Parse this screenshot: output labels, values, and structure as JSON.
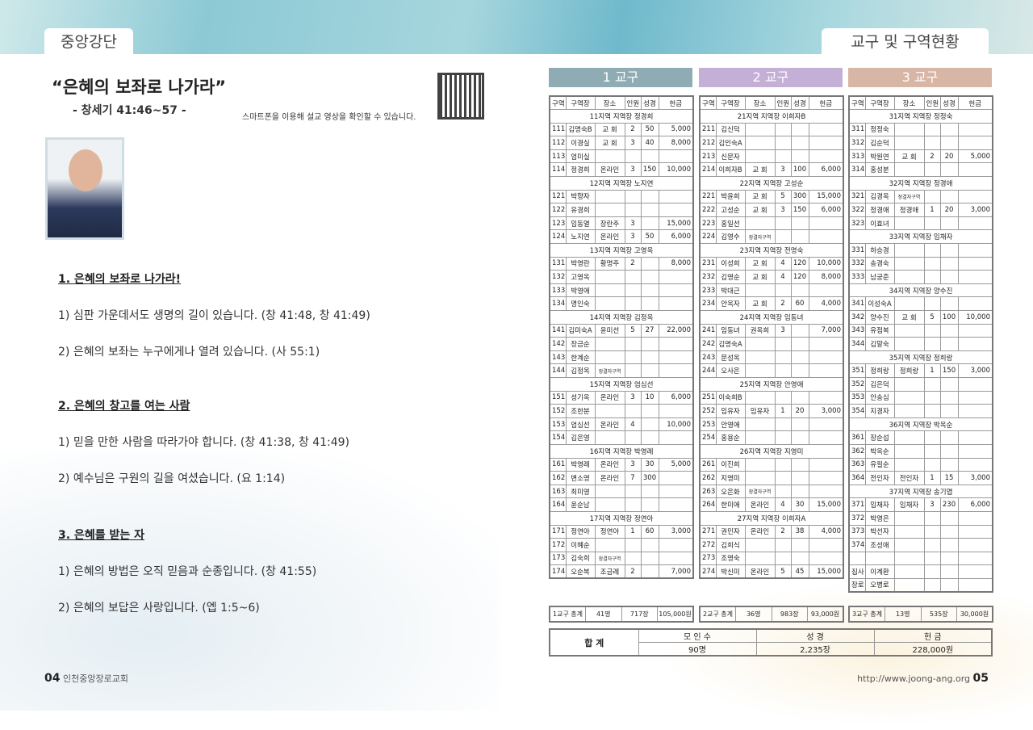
{
  "left_tab": "중앙강단",
  "right_tab": "교구 및 구역현황",
  "sermon": {
    "title": "“은혜의 보좌로 나가라”",
    "scripture": "- 창세기 41:46~57 -",
    "qr_note": "스마트폰을 이용해 설교 영상을 확인할 수 있습니다.",
    "outline": [
      {
        "text": "1. 은혜의 보좌로 나가라!",
        "heading": true
      },
      {
        "text": "1) 심판 가운데서도 생명의 길이 있습니다. (창 41:48, 창 41:49)"
      },
      {
        "text": "2) 은혜의 보좌는 누구에게나 열려 있습니다. (사 55:1)"
      },
      {
        "text": "2. 은혜의 창고를 여는 사람",
        "heading": true
      },
      {
        "text": "1) 믿을 만한 사람을 따라가야 합니다. (창 41:38, 창 41:49)"
      },
      {
        "text": "2) 예수님은 구원의 길을 여셨습니다. (요 1:14)"
      },
      {
        "text": "3. 은혜를 받는 자",
        "heading": true
      },
      {
        "text": "1) 은혜의 방법은 오직 믿음과 순종입니다. (창 41:55)"
      },
      {
        "text": "2) 은혜의 보답은 사랑입니다. (엡 1:5~6)"
      }
    ]
  },
  "footer": {
    "left_page": "04",
    "left_church": "인천중앙장로교회",
    "right_url": "http://www.joong-ang.org",
    "right_page": "05"
  },
  "columns": [
    "구역",
    "구역장",
    "장소",
    "인원",
    "성경",
    "헌금"
  ],
  "districts": [
    {
      "title": "1 교구",
      "color": "#8fabb3",
      "groups": [
        {
          "label": "11지역 지역장 정경희",
          "rows": [
            [
              "111",
              "김명숙B",
              "교 회",
              "2",
              "50",
              "5,000"
            ],
            [
              "112",
              "이경실",
              "교 회",
              "3",
              "40",
              "8,000"
            ],
            [
              "113",
              "엄미실"
            ],
            [
              "114",
              "정경희",
              "온라인",
              "3",
              "150",
              "10,000"
            ]
          ]
        },
        {
          "label": "12지역 지역장 노지연",
          "rows": [
            [
              "121",
              "박향자"
            ],
            [
              "122",
              "유경희"
            ],
            [
              "123",
              "임동열",
              "장란주",
              "3",
              "",
              "15,000"
            ],
            [
              "124",
              "노지연",
              "온라인",
              "3",
              "50",
              "6,000"
            ]
          ]
        },
        {
          "label": "13지역 지역장 고영옥",
          "rows": [
            [
              "131",
              "박영란",
              "황명주",
              "2",
              "",
              "8,000"
            ],
            [
              "132",
              "고영옥"
            ],
            [
              "133",
              "박영애"
            ],
            [
              "134",
              "명인숙"
            ]
          ]
        },
        {
          "label": "14지역 지역장 김정옥",
          "rows": [
            [
              "141",
              "김미숙A",
              "윤미선",
              "5",
              "27",
              "22,000"
            ],
            [
              "142",
              "장금순"
            ],
            [
              "143",
              "한계순"
            ],
            [
              "144",
              "김정옥",
              "장결자구역"
            ]
          ]
        },
        {
          "label": "15지역 지역장 엄심선",
          "rows": [
            [
              "151",
              "성기옥",
              "온라인",
              "3",
              "10",
              "6,000"
            ],
            [
              "152",
              "조한분"
            ],
            [
              "153",
              "엄심선",
              "온라인",
              "4",
              "",
              "10,000"
            ],
            [
              "154",
              "김은영"
            ]
          ]
        },
        {
          "label": "16지역 지역장 박영례",
          "rows": [
            [
              "161",
              "박영례",
              "온라인",
              "3",
              "30",
              "5,000"
            ],
            [
              "162",
              "변소영",
              "온라인",
              "7",
              "300"
            ],
            [
              "163",
              "최미영"
            ],
            [
              "164",
              "윤순남"
            ]
          ]
        },
        {
          "label": "17지역 지역장 정연아",
          "rows": [
            [
              "171",
              "정연아",
              "정연아",
              "1",
              "60",
              "3,000"
            ],
            [
              "172",
              "이혜순"
            ],
            [
              "173",
              "김숙희",
              "장결자구역"
            ],
            [
              "174",
              "오순복",
              "조금례",
              "2",
              "",
              "7,000"
            ]
          ]
        }
      ],
      "extra": [],
      "total": {
        "label": "1교구 총계",
        "people": "41명",
        "bible": "717장",
        "money": "105,000원"
      }
    },
    {
      "title": "2 교구",
      "color": "#c4afd6",
      "groups": [
        {
          "label": "21지역 지역장 이희자B",
          "rows": [
            [
              "211",
              "김신덕"
            ],
            [
              "212",
              "김인숙A"
            ],
            [
              "213",
              "신문자"
            ],
            [
              "214",
              "이희자B",
              "교 회",
              "3",
              "100",
              "6,000"
            ]
          ]
        },
        {
          "label": "22지역 지역장 고성순",
          "rows": [
            [
              "221",
              "박윤희",
              "교 회",
              "5",
              "300",
              "15,000"
            ],
            [
              "222",
              "고성순",
              "교 회",
              "3",
              "150",
              "6,000"
            ],
            [
              "223",
              "홍일선"
            ],
            [
              "224",
              "김영수",
              "장결자구역"
            ]
          ]
        },
        {
          "label": "23지역 지역장 전명숙",
          "rows": [
            [
              "231",
              "이성희",
              "교 회",
              "4",
              "120",
              "10,000"
            ],
            [
              "232",
              "김영순",
              "교 회",
              "4",
              "120",
              "8,000"
            ],
            [
              "233",
              "박대근"
            ],
            [
              "234",
              "안옥자",
              "교 회",
              "2",
              "60",
              "4,000"
            ]
          ]
        },
        {
          "label": "24지역 지역장 임동녀",
          "rows": [
            [
              "241",
              "임동녀",
              "권옥희",
              "3",
              "",
              "7,000"
            ],
            [
              "242",
              "김명숙A"
            ],
            [
              "243",
              "문성옥"
            ],
            [
              "244",
              "오사은"
            ]
          ]
        },
        {
          "label": "25지역 지역장 안영애",
          "rows": [
            [
              "251",
              "이숙희B"
            ],
            [
              "252",
              "임유자",
              "임유자",
              "1",
              "20",
              "3,000"
            ],
            [
              "253",
              "안영애"
            ],
            [
              "254",
              "홍용순"
            ]
          ]
        },
        {
          "label": "26지역 지역장 지영미",
          "rows": [
            [
              "261",
              "이진희"
            ],
            [
              "262",
              "지영미"
            ],
            [
              "263",
              "오은화",
              "장결자구역"
            ],
            [
              "264",
              "한미애",
              "온라인",
              "4",
              "30",
              "15,000"
            ]
          ]
        },
        {
          "label": "27지역 지역장 이희자A",
          "rows": [
            [
              "271",
              "권민자",
              "온라인",
              "2",
              "38",
              "4,000"
            ],
            [
              "272",
              "김희식"
            ],
            [
              "273",
              "조영숙"
            ],
            [
              "274",
              "박신미",
              "온라인",
              "5",
              "45",
              "15,000"
            ]
          ]
        }
      ],
      "extra": [],
      "total": {
        "label": "2교구 총계",
        "people": "36명",
        "bible": "983장",
        "money": "93,000원"
      }
    },
    {
      "title": "3 교구",
      "color": "#d8b6a6",
      "groups": [
        {
          "label": "31지역 지역장 정정숙",
          "rows": [
            [
              "311",
              "정정숙"
            ],
            [
              "312",
              "김순덕"
            ],
            [
              "313",
              "박원연",
              "교 회",
              "2",
              "20",
              "5,000"
            ],
            [
              "314",
              "홍성분"
            ]
          ]
        },
        {
          "label": "32지역 지역장 정경애",
          "rows": [
            [
              "321",
              "김경옥",
              "장결자구역"
            ],
            [
              "322",
              "정경애",
              "정경애",
              "1",
              "20",
              "3,000"
            ],
            [
              "323",
              "이효녀"
            ]
          ]
        },
        {
          "label": "33지역 지역장 임채자",
          "rows": [
            [
              "331",
              "하승경"
            ],
            [
              "332",
              "송경숙"
            ],
            [
              "333",
              "남궁준"
            ]
          ]
        },
        {
          "label": "34지역 지역장 양수진",
          "rows": [
            [
              "341",
              "이성숙A"
            ],
            [
              "342",
              "양수진",
              "교 회",
              "5",
              "100",
              "10,000"
            ],
            [
              "343",
              "유점복"
            ],
            [
              "344",
              "김말숙"
            ]
          ]
        },
        {
          "label": "35지역 지역장 정희랑",
          "rows": [
            [
              "351",
              "정희랑",
              "정희랑",
              "1",
              "150",
              "3,000"
            ],
            [
              "352",
              "김은덕"
            ],
            [
              "353",
              "안송심"
            ],
            [
              "354",
              "지경자"
            ]
          ]
        },
        {
          "label": "36지역 지역장 박옥순",
          "rows": [
            [
              "361",
              "장순섭"
            ],
            [
              "362",
              "박옥순"
            ],
            [
              "363",
              "유필순"
            ],
            [
              "364",
              "전인자",
              "전인자",
              "1",
              "15",
              "3,000"
            ]
          ]
        },
        {
          "label": "37지역 지역장 송기엽",
          "rows": [
            [
              "371",
              "임채자",
              "임채자",
              "3",
              "230",
              "6,000"
            ],
            [
              "372",
              "박영은"
            ],
            [
              "373",
              "박선자"
            ],
            [
              "374",
              "조성애"
            ]
          ]
        }
      ],
      "extra": [
        [
          ""
        ],
        [
          "집사",
          "이계환"
        ],
        [
          "장로",
          "오병로"
        ]
      ],
      "total": {
        "label": "3교구 총계",
        "people": "13명",
        "bible": "535장",
        "money": "30,000원"
      }
    }
  ],
  "grand_total": {
    "label": "합 계",
    "headers": [
      "모 인 수",
      "성 경",
      "헌 금"
    ],
    "values": [
      "90명",
      "2,235장",
      "228,000원"
    ]
  }
}
